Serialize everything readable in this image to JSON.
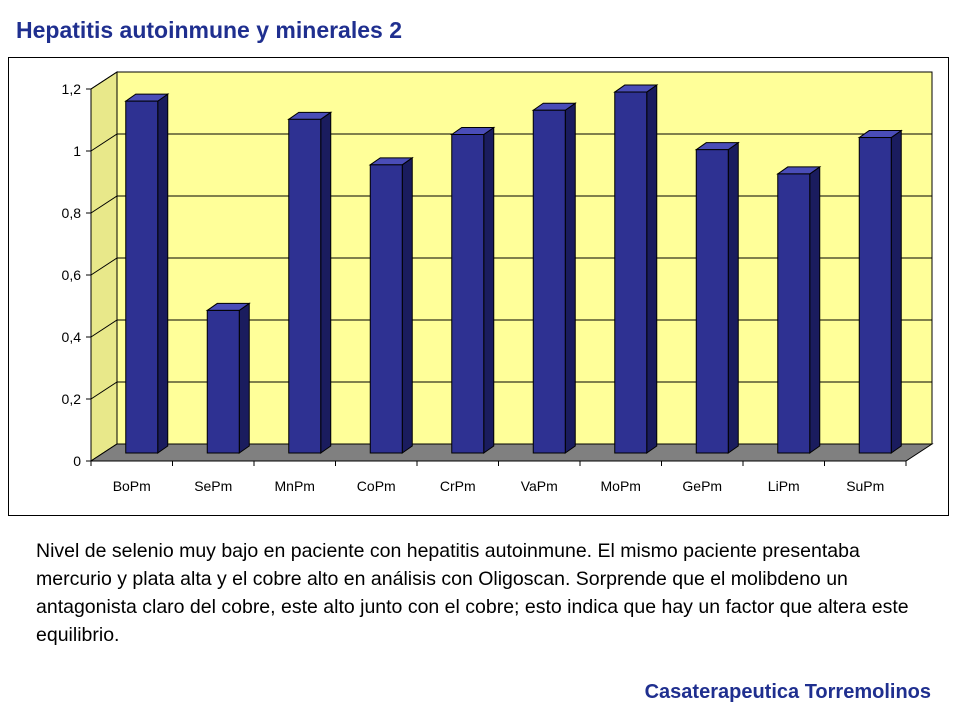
{
  "slide": {
    "title": "Hepatitis autoinmune y minerales 2",
    "description": "Nivel de selenio muy bajo en paciente con hepatitis autoinmune. El mismo paciente presentaba mercurio y plata alta y el cobre alto en análisis con Oligoscan. Sorprende que el molibdeno un antagonista claro del cobre, este alto junto con el cobre; esto indica que hay un factor que altera este equilibrio.",
    "footer": "Casaterapeutica  Torremolinos"
  },
  "chart_data": {
    "type": "bar",
    "categories": [
      "BoPm",
      "SePm",
      "MnPm",
      "CoPm",
      "CrPm",
      "VaPm",
      "MoPm",
      "GePm",
      "LiPm",
      "SuPm"
    ],
    "values": [
      1.16,
      0.47,
      1.1,
      0.95,
      1.05,
      1.13,
      1.19,
      1.0,
      0.92,
      1.04
    ],
    "ylim": [
      0,
      1.2
    ],
    "yticks": [
      "0",
      "0,2",
      "0,4",
      "0,6",
      "0,8",
      "1",
      "1,2"
    ],
    "title": "",
    "xlabel": "",
    "ylabel": "",
    "grid": true,
    "legend": "none",
    "style": "3d-column",
    "colors": {
      "bar_front": "#2e3192",
      "bar_side": "#1a1c5e",
      "bar_top": "#4a4db8",
      "plot_wall": "#ffff99",
      "floor": "#808080",
      "floor_dark": "#5a5a5a"
    }
  }
}
